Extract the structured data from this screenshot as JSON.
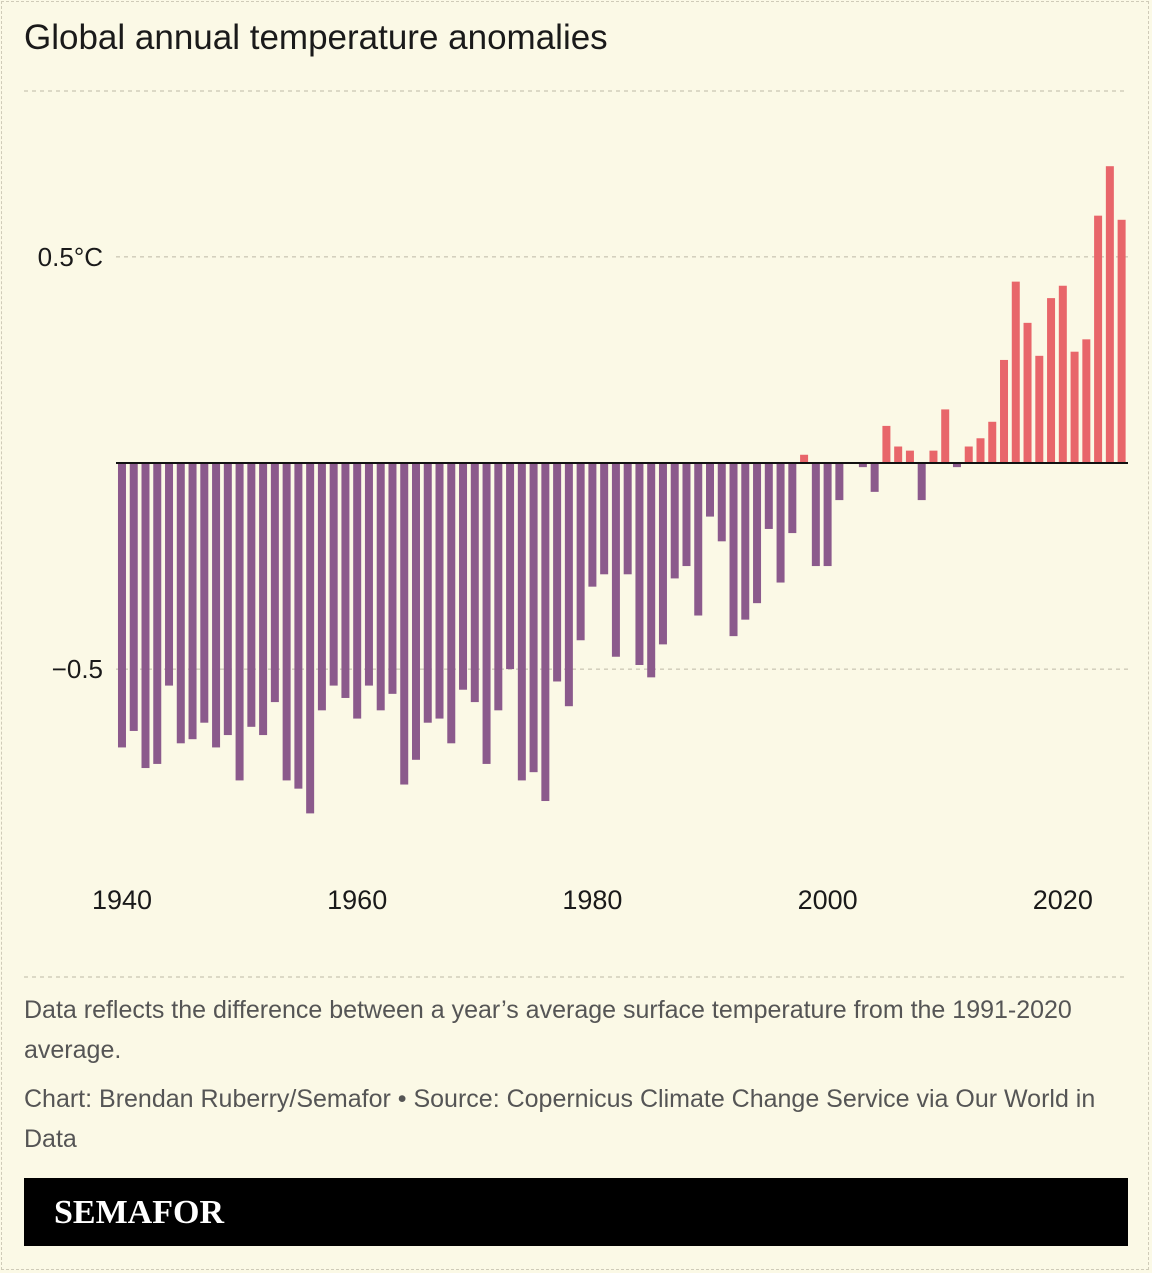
{
  "chart_data": {
    "type": "bar",
    "title": "Global annual temperature anomalies",
    "x": [
      1940,
      1941,
      1942,
      1943,
      1944,
      1945,
      1946,
      1947,
      1948,
      1949,
      1950,
      1951,
      1952,
      1953,
      1954,
      1955,
      1956,
      1957,
      1958,
      1959,
      1960,
      1961,
      1962,
      1963,
      1964,
      1965,
      1966,
      1967,
      1968,
      1969,
      1970,
      1971,
      1972,
      1973,
      1974,
      1975,
      1976,
      1977,
      1978,
      1979,
      1980,
      1981,
      1982,
      1983,
      1984,
      1985,
      1986,
      1987,
      1988,
      1989,
      1990,
      1991,
      1992,
      1993,
      1994,
      1995,
      1996,
      1997,
      1998,
      1999,
      2000,
      2001,
      2002,
      2003,
      2004,
      2005,
      2006,
      2007,
      2008,
      2009,
      2010,
      2011,
      2012,
      2013,
      2014,
      2015,
      2016,
      2017,
      2018,
      2019,
      2020,
      2021,
      2022,
      2023,
      2024,
      2025
    ],
    "values": [
      -0.69,
      -0.65,
      -0.74,
      -0.73,
      -0.54,
      -0.68,
      -0.67,
      -0.63,
      -0.69,
      -0.66,
      -0.77,
      -0.64,
      -0.66,
      -0.58,
      -0.77,
      -0.79,
      -0.85,
      -0.6,
      -0.54,
      -0.57,
      -0.62,
      -0.54,
      -0.6,
      -0.56,
      -0.78,
      -0.72,
      -0.63,
      -0.62,
      -0.68,
      -0.55,
      -0.58,
      -0.73,
      -0.6,
      -0.5,
      -0.77,
      -0.75,
      -0.82,
      -0.53,
      -0.59,
      -0.43,
      -0.3,
      -0.27,
      -0.47,
      -0.27,
      -0.49,
      -0.52,
      -0.44,
      -0.28,
      -0.25,
      -0.37,
      -0.13,
      -0.19,
      -0.42,
      -0.38,
      -0.34,
      -0.16,
      -0.29,
      -0.17,
      0.02,
      -0.25,
      -0.25,
      -0.09,
      0.0,
      -0.01,
      -0.07,
      0.09,
      0.04,
      0.03,
      -0.09,
      0.03,
      0.13,
      -0.01,
      0.04,
      0.06,
      0.1,
      0.25,
      0.44,
      0.34,
      0.26,
      0.4,
      0.43,
      0.27,
      0.3,
      0.6,
      0.72,
      0.59
    ],
    "positive_color": "#e8666a",
    "negative_color": "#8b5a8c",
    "xlim": [
      1939.5,
      2025.5
    ],
    "xticks": [
      1940,
      1960,
      1980,
      2000,
      2020
    ],
    "ylim": [
      -0.9,
      0.9
    ],
    "yticks": [
      {
        "value": 0.5,
        "label": "0.5°C"
      },
      {
        "value": -0.5,
        "label": "−0.5"
      }
    ],
    "grid": true,
    "note": "Data reflects the difference between a year’s average surface temperature from the 1991-2020 average.",
    "source": "Chart: Brendan Ruberry/Semafor • Source: Copernicus Climate Change Service via Our World in Data",
    "brand": "SEMAFOR"
  }
}
